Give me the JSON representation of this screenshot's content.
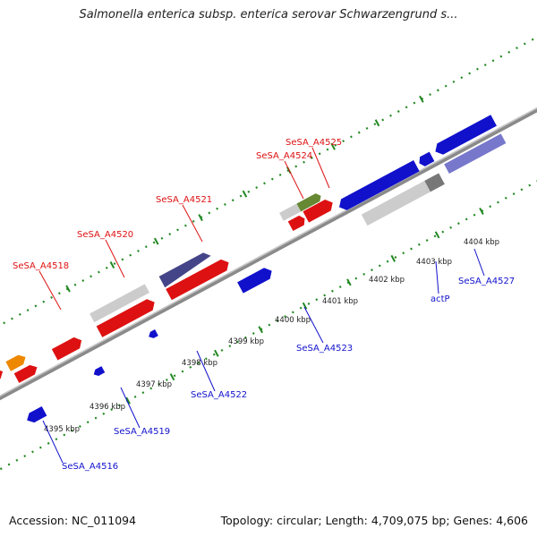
{
  "title": "Salmonella enterica subsp. enterica serovar Schwarzengrund s...",
  "footer": {
    "accession": "Accession: NC_011094",
    "summary": "Topology: circular; Length: 4,709,075 bp; Genes: 4,606"
  },
  "colors": {
    "forward_label": "#dd1111",
    "reverse_label": "#1111cc",
    "backbone": "#8a8a8a",
    "tick_dots": "#228822"
  },
  "scale_ticks": [
    {
      "label": "4395 kbp"
    },
    {
      "label": "4396 kbp"
    },
    {
      "label": "4397 kbp"
    },
    {
      "label": "4398 kbp"
    },
    {
      "label": "4399 kbp"
    },
    {
      "label": "4400 kbp"
    },
    {
      "label": "4401 kbp"
    },
    {
      "label": "4402 kbp"
    },
    {
      "label": "4403 kbp"
    },
    {
      "label": "4404 kbp"
    }
  ],
  "gene_labels": [
    {
      "text": "SeSA_A4518",
      "strand": "forward"
    },
    {
      "text": "SeSA_A4520",
      "strand": "forward"
    },
    {
      "text": "SeSA_A4521",
      "strand": "forward"
    },
    {
      "text": "SeSA_A4524",
      "strand": "forward"
    },
    {
      "text": "SeSA_A4525",
      "strand": "forward"
    },
    {
      "text": "SeSA_A4516",
      "strand": "reverse"
    },
    {
      "text": "SeSA_A4519",
      "strand": "reverse"
    },
    {
      "text": "SeSA_A4522",
      "strand": "reverse"
    },
    {
      "text": "SeSA_A4523",
      "strand": "reverse"
    },
    {
      "text": "actP",
      "strand": "reverse"
    },
    {
      "text": "SeSA_A4527",
      "strand": "reverse"
    }
  ]
}
